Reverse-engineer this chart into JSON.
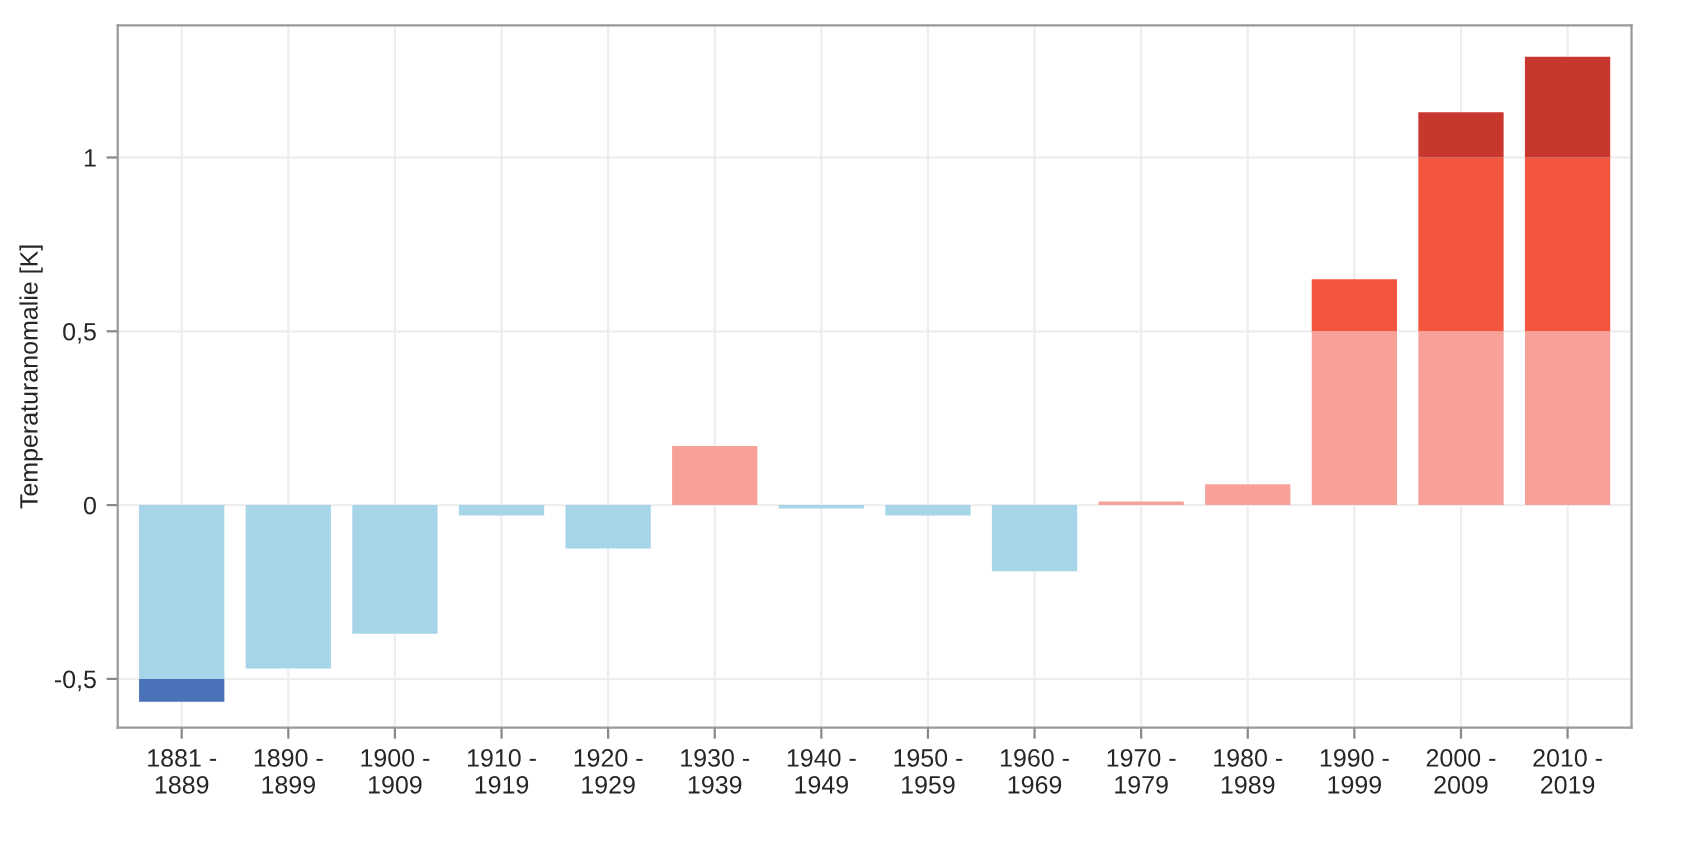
{
  "chart_data": {
    "type": "bar",
    "stacked": true,
    "ylabel": "Temperaturanomalie [K]",
    "categories": [
      "1881 -\n1889",
      "1890 -\n1899",
      "1900 -\n1909",
      "1910 -\n1919",
      "1920 -\n1929",
      "1930 -\n1939",
      "1940 -\n1949",
      "1950 -\n1959",
      "1960 -\n1969",
      "1970 -\n1979",
      "1980 -\n1989",
      "1990 -\n1999",
      "2000 -\n2009",
      "2010 -\n2019"
    ],
    "series": [
      {
        "color": "#a6d5ea",
        "values": [
          -0.5,
          -0.47,
          -0.37,
          -0.03,
          -0.125,
          null,
          -0.01,
          -0.03,
          -0.19,
          null,
          null,
          null,
          null,
          null
        ]
      },
      {
        "color": "#4a72b8",
        "values": [
          -0.066,
          null,
          null,
          null,
          null,
          null,
          null,
          null,
          null,
          null,
          null,
          null,
          null,
          null
        ]
      },
      {
        "color": "#f7a199",
        "values": [
          null,
          null,
          null,
          null,
          null,
          0.17,
          null,
          null,
          null,
          0.01,
          0.06,
          0.5,
          0.5,
          0.5
        ]
      },
      {
        "color": "#f4553f",
        "values": [
          null,
          null,
          null,
          null,
          null,
          null,
          null,
          null,
          null,
          null,
          null,
          0.15,
          0.5,
          0.5
        ]
      },
      {
        "color": "#c8372d",
        "values": [
          null,
          null,
          null,
          null,
          null,
          null,
          null,
          null,
          null,
          null,
          null,
          null,
          0.13,
          0.29
        ]
      }
    ],
    "ylim": [
      -0.64,
      1.38
    ],
    "yticks": [
      {
        "value": -0.5,
        "label": "-0,5"
      },
      0,
      {
        "value": 0.5,
        "label": "0,5"
      },
      1
    ],
    "grid": true
  }
}
